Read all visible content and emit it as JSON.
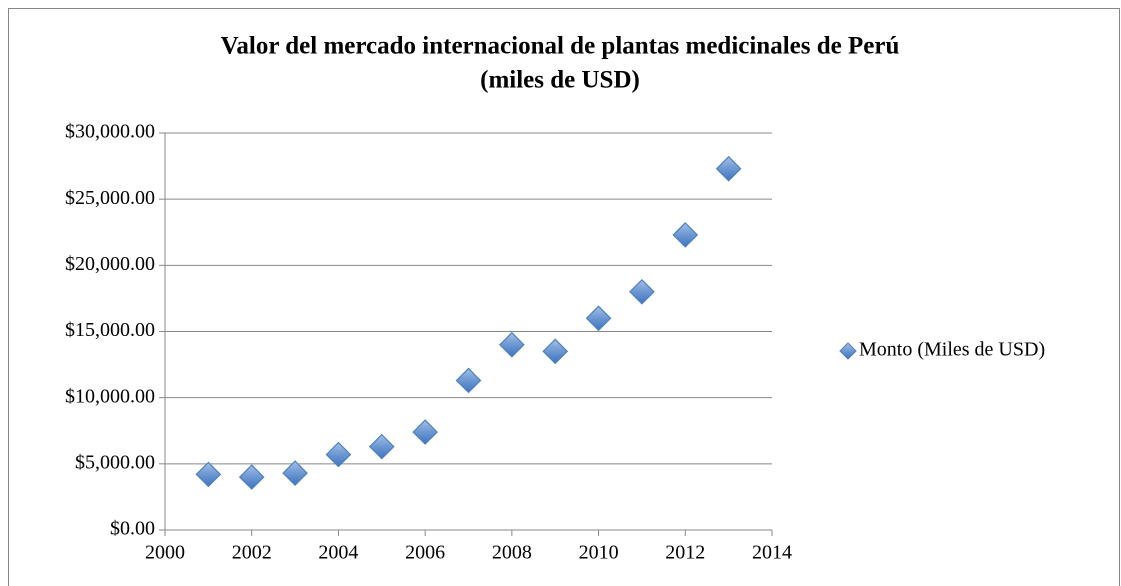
{
  "chart_data": {
    "type": "scatter",
    "title": "Valor del mercado internacional de plantas medicinales de Perú",
    "subtitle": "(miles de USD)",
    "series": [
      {
        "name": "Monto (Miles de USD)",
        "color": "#4f81bd",
        "x": [
          2001,
          2002,
          2003,
          2004,
          2005,
          2006,
          2007,
          2008,
          2009,
          2010,
          2011,
          2012,
          2013
        ],
        "values": [
          4200,
          4000,
          4300,
          5700,
          6300,
          7400,
          11300,
          14000,
          13500,
          16000,
          18000,
          22300,
          27300
        ]
      }
    ],
    "xlim": [
      2000,
      2014
    ],
    "xticks": [
      2000,
      2002,
      2004,
      2006,
      2008,
      2010,
      2012,
      2014
    ],
    "ylim": [
      0,
      30000
    ],
    "yticks": [
      {
        "value": 0,
        "label": "$0.00"
      },
      {
        "value": 5000,
        "label": "$5,000.00"
      },
      {
        "value": 10000,
        "label": "$10,000.00"
      },
      {
        "value": 15000,
        "label": "$15,000.00"
      },
      {
        "value": 20000,
        "label": "$20,000.00"
      },
      {
        "value": 25000,
        "label": "$25,000.00"
      },
      {
        "value": 30000,
        "label": "$30,000.00"
      }
    ],
    "grid": true,
    "legend": "right"
  }
}
